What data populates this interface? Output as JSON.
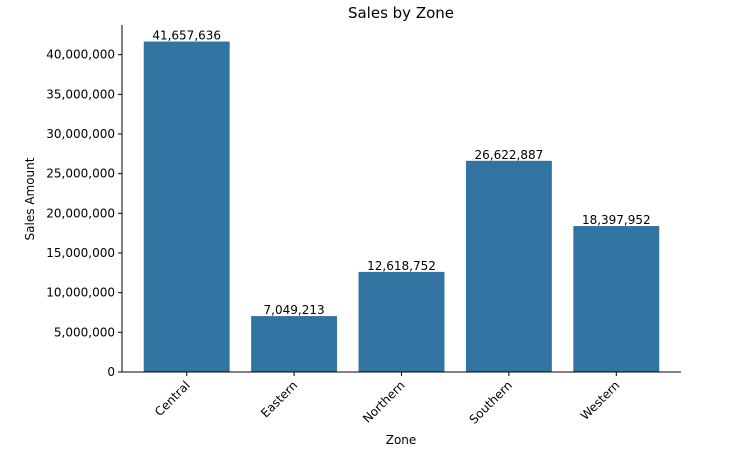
{
  "chart_data": {
    "type": "bar",
    "title": "Sales by Zone",
    "xlabel": "Zone",
    "ylabel": "Sales Amount",
    "categories": [
      "Central",
      "Eastern",
      "Northern",
      "Southern",
      "Western"
    ],
    "values": [
      41657636,
      7049213,
      12618752,
      26622887,
      18397952
    ],
    "data_labels": [
      "41,657,636",
      "7,049,213",
      "12,618,752",
      "26,622,887",
      "18,397,952"
    ],
    "ylim": [
      0,
      43740518
    ],
    "yticks": [
      0,
      5000000,
      10000000,
      15000000,
      20000000,
      25000000,
      30000000,
      35000000,
      40000000
    ],
    "ytick_labels": [
      "0",
      "5,000,000",
      "10,000,000",
      "15,000,000",
      "20,000,000",
      "25,000,000",
      "30,000,000",
      "35,000,000",
      "40,000,000"
    ],
    "bar_color": "#3274a1",
    "grid": false,
    "legend": "none"
  }
}
